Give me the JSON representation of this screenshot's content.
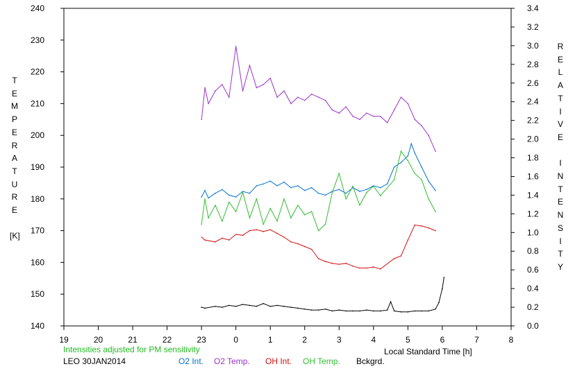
{
  "chart_data": {
    "type": "line",
    "title": "",
    "left_axis": {
      "label": "TEMPERATURE",
      "unit": "[K]",
      "ylim": [
        140,
        240
      ],
      "ticks": [
        "140",
        "150",
        "160",
        "170",
        "180",
        "190",
        "200",
        "210",
        "220",
        "230",
        "240"
      ]
    },
    "right_axis": {
      "label": "RELATIVE INTENSITY",
      "ylim": [
        0.0,
        3.4
      ],
      "ticks": [
        "0.0",
        "0.2",
        "0.4",
        "0.6",
        "0.8",
        "1.0",
        "1.2",
        "1.4",
        "1.6",
        "1.8",
        "2.0",
        "2.2",
        "2.4",
        "2.6",
        "2.8",
        "3.0",
        "3.2",
        "3.4"
      ]
    },
    "x_axis": {
      "label": "Local Standard Time [h]",
      "xlim": [
        19,
        32
      ],
      "ticks": [
        "19",
        "20",
        "21",
        "22",
        "23",
        "0",
        "1",
        "2",
        "3",
        "4",
        "5",
        "6",
        "7",
        "8"
      ]
    },
    "grid": false,
    "note": "Intensities adjusted for PM sensitivity",
    "station": "LEO 30JAN2014",
    "series": [
      {
        "name": "O2 Int.",
        "axis": "right",
        "color": "#0070d0",
        "points": [
          [
            23.0,
            1.38
          ],
          [
            23.1,
            1.45
          ],
          [
            23.2,
            1.37
          ],
          [
            23.4,
            1.42
          ],
          [
            23.6,
            1.46
          ],
          [
            23.8,
            1.4
          ],
          [
            24.0,
            1.38
          ],
          [
            24.2,
            1.44
          ],
          [
            24.4,
            1.42
          ],
          [
            24.6,
            1.5
          ],
          [
            24.8,
            1.52
          ],
          [
            25.0,
            1.55
          ],
          [
            25.2,
            1.5
          ],
          [
            25.4,
            1.54
          ],
          [
            25.6,
            1.48
          ],
          [
            25.8,
            1.5
          ],
          [
            26.0,
            1.45
          ],
          [
            26.2,
            1.48
          ],
          [
            26.4,
            1.42
          ],
          [
            26.6,
            1.4
          ],
          [
            26.8,
            1.44
          ],
          [
            27.0,
            1.46
          ],
          [
            27.2,
            1.42
          ],
          [
            27.4,
            1.48
          ],
          [
            27.6,
            1.44
          ],
          [
            27.8,
            1.46
          ],
          [
            28.0,
            1.5
          ],
          [
            28.2,
            1.48
          ],
          [
            28.4,
            1.52
          ],
          [
            28.6,
            1.7
          ],
          [
            28.8,
            1.75
          ],
          [
            29.0,
            1.82
          ],
          [
            29.1,
            1.95
          ],
          [
            29.2,
            1.85
          ],
          [
            29.4,
            1.7
          ],
          [
            29.6,
            1.55
          ],
          [
            29.8,
            1.45
          ]
        ]
      },
      {
        "name": "O2 Temp.",
        "axis": "left",
        "color": "#9933cc",
        "points": [
          [
            23.0,
            205
          ],
          [
            23.1,
            215
          ],
          [
            23.2,
            210
          ],
          [
            23.4,
            214
          ],
          [
            23.6,
            216
          ],
          [
            23.8,
            212
          ],
          [
            24.0,
            228
          ],
          [
            24.2,
            214
          ],
          [
            24.4,
            222
          ],
          [
            24.6,
            215
          ],
          [
            24.8,
            216
          ],
          [
            25.0,
            218
          ],
          [
            25.2,
            212
          ],
          [
            25.4,
            214
          ],
          [
            25.6,
            210
          ],
          [
            25.8,
            212
          ],
          [
            26.0,
            211
          ],
          [
            26.2,
            213
          ],
          [
            26.4,
            212
          ],
          [
            26.6,
            211
          ],
          [
            26.8,
            208
          ],
          [
            27.0,
            207
          ],
          [
            27.2,
            209
          ],
          [
            27.4,
            206
          ],
          [
            27.6,
            205
          ],
          [
            27.8,
            207
          ],
          [
            28.0,
            206
          ],
          [
            28.2,
            206
          ],
          [
            28.4,
            204
          ],
          [
            28.6,
            208
          ],
          [
            28.8,
            212
          ],
          [
            29.0,
            210
          ],
          [
            29.2,
            205
          ],
          [
            29.4,
            203
          ],
          [
            29.6,
            200
          ],
          [
            29.8,
            195
          ]
        ]
      },
      {
        "name": "OH Int.",
        "axis": "right",
        "color": "#d01010",
        "points": [
          [
            23.0,
            0.95
          ],
          [
            23.1,
            0.92
          ],
          [
            23.4,
            0.9
          ],
          [
            23.6,
            0.94
          ],
          [
            23.8,
            0.92
          ],
          [
            24.0,
            0.98
          ],
          [
            24.2,
            0.97
          ],
          [
            24.4,
            1.02
          ],
          [
            24.6,
            1.03
          ],
          [
            24.8,
            1.01
          ],
          [
            25.0,
            1.03
          ],
          [
            25.2,
            0.99
          ],
          [
            25.4,
            0.95
          ],
          [
            25.6,
            0.9
          ],
          [
            25.8,
            0.88
          ],
          [
            26.0,
            0.85
          ],
          [
            26.2,
            0.82
          ],
          [
            26.4,
            0.72
          ],
          [
            26.6,
            0.69
          ],
          [
            26.8,
            0.67
          ],
          [
            27.0,
            0.66
          ],
          [
            27.2,
            0.67
          ],
          [
            27.4,
            0.64
          ],
          [
            27.6,
            0.62
          ],
          [
            27.8,
            0.62
          ],
          [
            28.0,
            0.63
          ],
          [
            28.2,
            0.61
          ],
          [
            28.6,
            0.72
          ],
          [
            28.8,
            0.75
          ],
          [
            29.0,
            0.92
          ],
          [
            29.2,
            1.08
          ],
          [
            29.4,
            1.07
          ],
          [
            29.6,
            1.05
          ],
          [
            29.8,
            1.02
          ]
        ]
      },
      {
        "name": "OH Temp.",
        "axis": "left",
        "color": "#33bb33",
        "points": [
          [
            23.0,
            172
          ],
          [
            23.1,
            180
          ],
          [
            23.2,
            174
          ],
          [
            23.4,
            178
          ],
          [
            23.6,
            173
          ],
          [
            23.8,
            179
          ],
          [
            24.0,
            176
          ],
          [
            24.2,
            182
          ],
          [
            24.4,
            174
          ],
          [
            24.6,
            180
          ],
          [
            24.8,
            172
          ],
          [
            25.0,
            177
          ],
          [
            25.2,
            173
          ],
          [
            25.4,
            180
          ],
          [
            25.6,
            174
          ],
          [
            25.8,
            178
          ],
          [
            26.0,
            175
          ],
          [
            26.2,
            176
          ],
          [
            26.4,
            170
          ],
          [
            26.6,
            172
          ],
          [
            26.8,
            182
          ],
          [
            27.0,
            188
          ],
          [
            27.2,
            180
          ],
          [
            27.4,
            184
          ],
          [
            27.6,
            178
          ],
          [
            27.8,
            182
          ],
          [
            28.0,
            184
          ],
          [
            28.2,
            181
          ],
          [
            28.6,
            186
          ],
          [
            28.8,
            195
          ],
          [
            29.0,
            192
          ],
          [
            29.2,
            188
          ],
          [
            29.4,
            186
          ],
          [
            29.6,
            180
          ],
          [
            29.8,
            176
          ]
        ]
      },
      {
        "name": "Bckgrd.",
        "axis": "right",
        "color": "#000000",
        "points": [
          [
            23.0,
            0.2
          ],
          [
            23.1,
            0.19
          ],
          [
            23.4,
            0.21
          ],
          [
            23.6,
            0.2
          ],
          [
            23.8,
            0.22
          ],
          [
            24.0,
            0.21
          ],
          [
            24.2,
            0.23
          ],
          [
            24.4,
            0.22
          ],
          [
            24.6,
            0.21
          ],
          [
            24.8,
            0.24
          ],
          [
            25.0,
            0.21
          ],
          [
            25.2,
            0.22
          ],
          [
            25.4,
            0.21
          ],
          [
            25.6,
            0.2
          ],
          [
            25.8,
            0.19
          ],
          [
            26.0,
            0.18
          ],
          [
            26.2,
            0.17
          ],
          [
            26.4,
            0.17
          ],
          [
            26.6,
            0.18
          ],
          [
            26.8,
            0.16
          ],
          [
            27.0,
            0.17
          ],
          [
            27.2,
            0.16
          ],
          [
            27.4,
            0.16
          ],
          [
            27.6,
            0.16
          ],
          [
            27.8,
            0.17
          ],
          [
            28.0,
            0.16
          ],
          [
            28.2,
            0.16
          ],
          [
            28.4,
            0.17
          ],
          [
            28.5,
            0.26
          ],
          [
            28.6,
            0.16
          ],
          [
            28.8,
            0.15
          ],
          [
            29.0,
            0.15
          ],
          [
            29.2,
            0.16
          ],
          [
            29.4,
            0.16
          ],
          [
            29.6,
            0.16
          ],
          [
            29.8,
            0.18
          ],
          [
            29.9,
            0.25
          ],
          [
            30.0,
            0.4
          ],
          [
            30.05,
            0.52
          ]
        ]
      }
    ]
  }
}
